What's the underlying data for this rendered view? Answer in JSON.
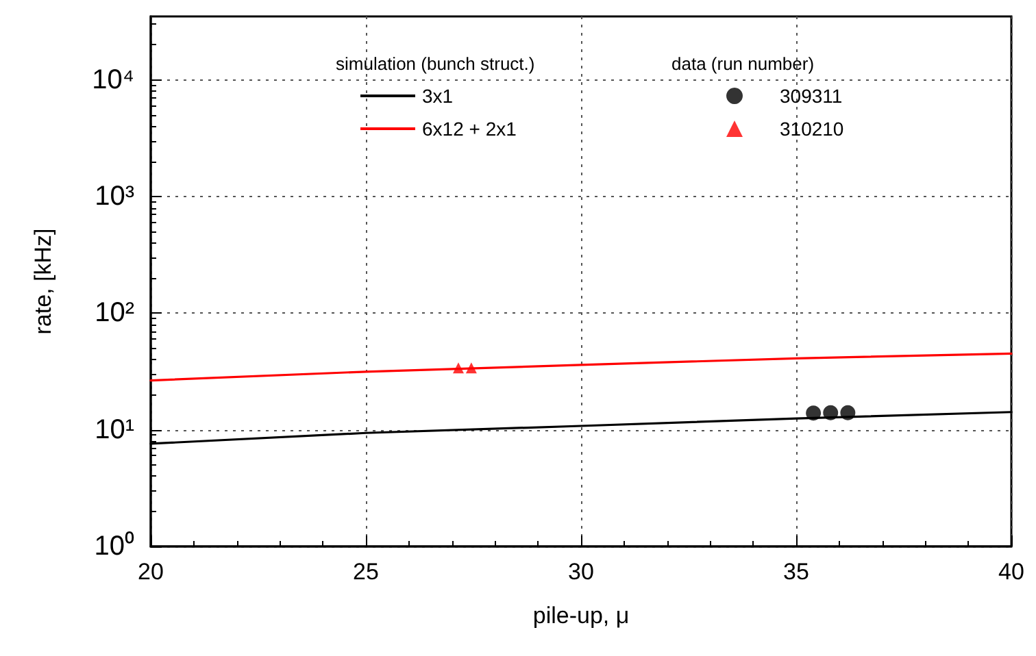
{
  "chart_data": {
    "type": "line",
    "xlabel": "pile-up, μ",
    "ylabel": "rate, [kHz]",
    "log": "y",
    "legend_title": "simulation (bunch struct.)",
    "annotations": [
      "data (run number)"
    ],
    "xlim": [
      20,
      40
    ],
    "xticks": [
      20,
      25,
      30,
      35,
      40
    ],
    "ylim": [
      1,
      35000
    ],
    "yticks": [
      {
        "value": 1,
        "label": "10⁰"
      },
      {
        "value": 10,
        "label": "10¹"
      },
      {
        "value": 100,
        "label": "10²"
      },
      {
        "value": 1000,
        "label": "10³"
      },
      {
        "value": 10000,
        "label": "10⁴"
      }
    ],
    "grid": true,
    "legend": "top",
    "line_style": "solid",
    "series": [
      {
        "name": "3x1",
        "marker": "none",
        "color": "#000000",
        "x": [
          20,
          25,
          30,
          35,
          40
        ],
        "values": [
          7.6,
          9.4,
          10.8,
          12.5,
          14.2
        ]
      },
      {
        "name": "6x12 + 2x1",
        "marker": "none",
        "color": "#ff0000",
        "x": [
          20,
          25,
          30,
          35,
          40
        ],
        "values": [
          26.5,
          31.5,
          36,
          41,
          45
        ]
      },
      {
        "name": "309311",
        "type": "scatter",
        "marker": "circle",
        "color": "#000000",
        "x": [
          35.4,
          35.8,
          36.2
        ],
        "values": [
          13.9,
          14,
          14
        ]
      },
      {
        "name": "310210",
        "type": "scatter",
        "marker": "triangle",
        "color": "#ff0000",
        "x": [
          27.15,
          27.45
        ],
        "values": [
          34,
          34
        ]
      }
    ]
  }
}
